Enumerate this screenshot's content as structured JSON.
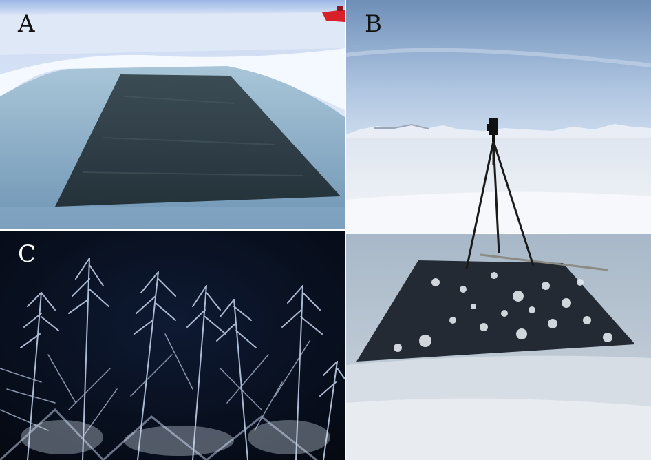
{
  "panels": [
    {
      "id": "a",
      "label": "A"
    },
    {
      "id": "b",
      "label": "B"
    },
    {
      "id": "c",
      "label": "C"
    }
  ]
}
